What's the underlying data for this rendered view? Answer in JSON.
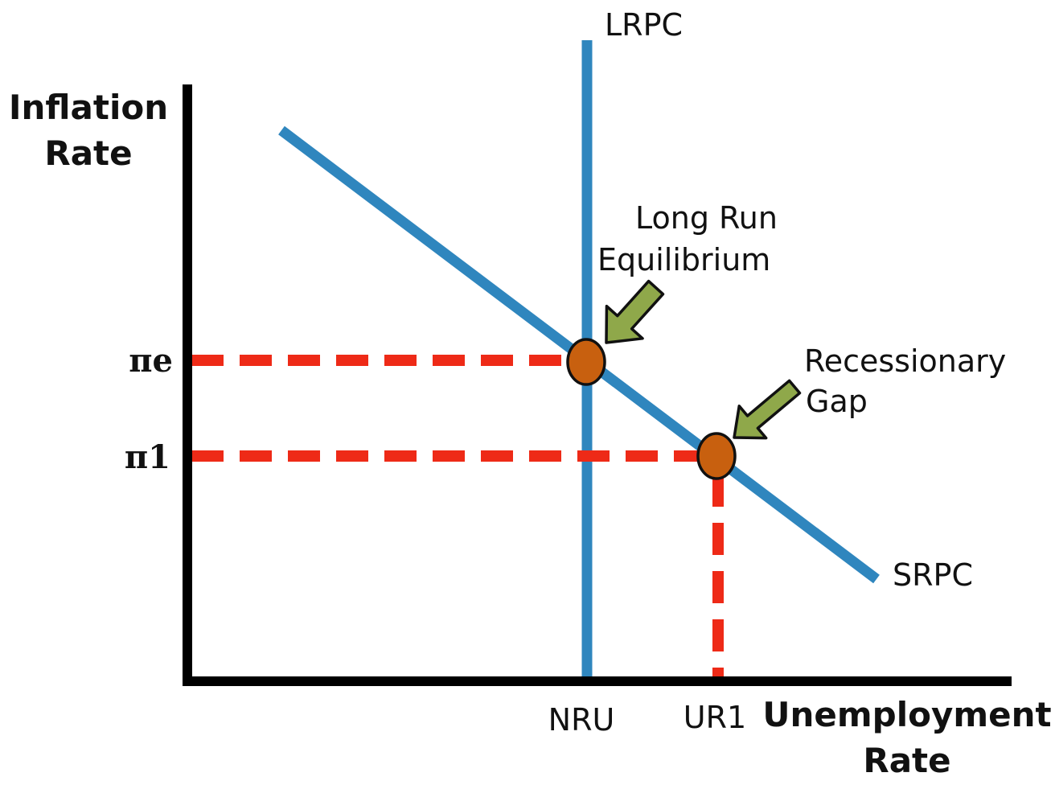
{
  "diagram": {
    "y_axis_title": [
      "Inflation",
      "Rate"
    ],
    "x_axis_title": [
      "Unemployment",
      "Rate"
    ],
    "y_ticks": {
      "expected": "πe",
      "actual": "π1"
    },
    "x_ticks": {
      "natural": "NRU",
      "actual": "UR1"
    },
    "curves": {
      "long_run": "LRPC",
      "short_run": "SRPC"
    },
    "annotations": {
      "equilibrium": [
        "Long Run",
        "Equilibrium"
      ],
      "gap": [
        "Recessionary",
        "Gap"
      ]
    },
    "colors": {
      "curve": "#2f86be",
      "guide": "#ee2a17",
      "point": "#c8600f",
      "arrow": "#8fa84a",
      "axis": "#000000"
    }
  }
}
